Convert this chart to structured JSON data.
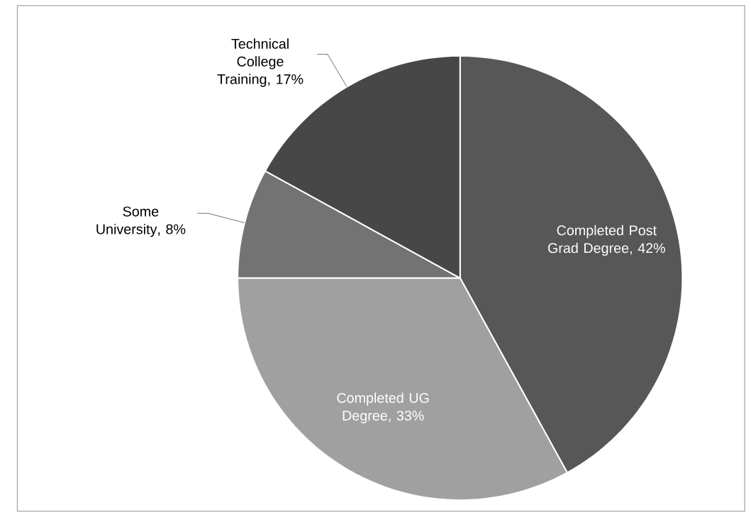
{
  "chart_data": {
    "type": "pie",
    "categories": [
      "Completed Post Grad Degree",
      "Completed UG Degree",
      "Some University",
      "Technical College Training"
    ],
    "values": [
      42,
      33,
      8,
      17
    ],
    "value_labels": [
      ", 42%",
      ", 33%",
      ", 8%",
      ", 17%"
    ],
    "colors": [
      "#575757",
      "#a0a0a0",
      "#737373",
      "#474747"
    ]
  }
}
